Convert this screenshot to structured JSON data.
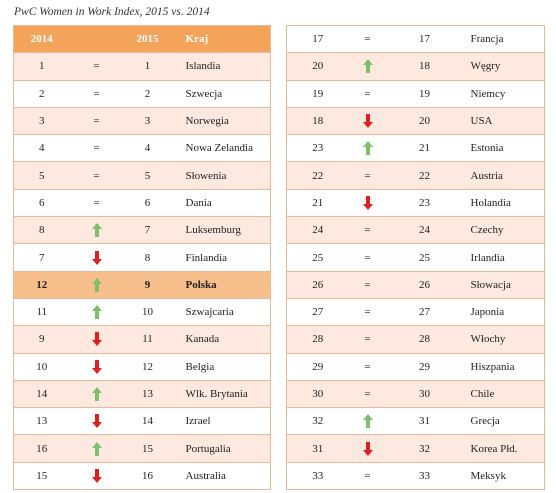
{
  "caption": "PwC Women in Work Index, 2015 vs. 2014",
  "headers": {
    "y2014": "2014",
    "change": "",
    "y2015": "2015",
    "country": "Kraj"
  },
  "colors": {
    "header": "#f4a35a",
    "row_tint": "#fde9df",
    "highlight": "#f7bf8c",
    "up": "#7cc16a",
    "down": "#e02020"
  },
  "left_rows": [
    {
      "y2014": "1",
      "change": "=",
      "y2015": "1",
      "country": "Islandia"
    },
    {
      "y2014": "2",
      "change": "=",
      "y2015": "2",
      "country": "Szwecja"
    },
    {
      "y2014": "3",
      "change": "=",
      "y2015": "3",
      "country": "Norwegia"
    },
    {
      "y2014": "4",
      "change": "=",
      "y2015": "4",
      "country": "Nowa Zelandia"
    },
    {
      "y2014": "5",
      "change": "=",
      "y2015": "5",
      "country": "Słowenia"
    },
    {
      "y2014": "6",
      "change": "=",
      "y2015": "6",
      "country": "Dania"
    },
    {
      "y2014": "8",
      "change": "up",
      "y2015": "7",
      "country": "Luksemburg"
    },
    {
      "y2014": "7",
      "change": "down",
      "y2015": "8",
      "country": "Finlandia"
    },
    {
      "y2014": "12",
      "change": "up",
      "y2015": "9",
      "country": "Polska",
      "highlight": true
    },
    {
      "y2014": "11",
      "change": "up",
      "y2015": "10",
      "country": "Szwajcaria"
    },
    {
      "y2014": "9",
      "change": "down",
      "y2015": "11",
      "country": "Kanada"
    },
    {
      "y2014": "10",
      "change": "down",
      "y2015": "12",
      "country": "Belgia"
    },
    {
      "y2014": "14",
      "change": "up",
      "y2015": "13",
      "country": "Wlk. Brytania"
    },
    {
      "y2014": "13",
      "change": "down",
      "y2015": "14",
      "country": "Izrael"
    },
    {
      "y2014": "16",
      "change": "up",
      "y2015": "15",
      "country": "Portugalia"
    },
    {
      "y2014": "15",
      "change": "down",
      "y2015": "16",
      "country": "Australia"
    }
  ],
  "right_rows": [
    {
      "y2014": "17",
      "change": "=",
      "y2015": "17",
      "country": "Francja"
    },
    {
      "y2014": "20",
      "change": "up",
      "y2015": "18",
      "country": "Węgry"
    },
    {
      "y2014": "19",
      "change": "=",
      "y2015": "19",
      "country": "Niemcy"
    },
    {
      "y2014": "18",
      "change": "down",
      "y2015": "20",
      "country": "USA"
    },
    {
      "y2014": "23",
      "change": "up",
      "y2015": "21",
      "country": "Estonia"
    },
    {
      "y2014": "22",
      "change": "=",
      "y2015": "22",
      "country": "Austria"
    },
    {
      "y2014": "21",
      "change": "down",
      "y2015": "23",
      "country": "Holandia"
    },
    {
      "y2014": "24",
      "change": "=",
      "y2015": "24",
      "country": "Czechy"
    },
    {
      "y2014": "25",
      "change": "=",
      "y2015": "25",
      "country": "Irlandia"
    },
    {
      "y2014": "26",
      "change": "=",
      "y2015": "26",
      "country": "Słowacja"
    },
    {
      "y2014": "27",
      "change": "=",
      "y2015": "27",
      "country": "Japonia"
    },
    {
      "y2014": "28",
      "change": "=",
      "y2015": "28",
      "country": "Włochy"
    },
    {
      "y2014": "29",
      "change": "=",
      "y2015": "29",
      "country": "Hiszpania"
    },
    {
      "y2014": "30",
      "change": "=",
      "y2015": "30",
      "country": "Chile"
    },
    {
      "y2014": "32",
      "change": "up",
      "y2015": "31",
      "country": "Grecja"
    },
    {
      "y2014": "31",
      "change": "down",
      "y2015": "32",
      "country": "Korea Płd."
    },
    {
      "y2014": "33",
      "change": "=",
      "y2015": "33",
      "country": "Meksyk"
    }
  ]
}
